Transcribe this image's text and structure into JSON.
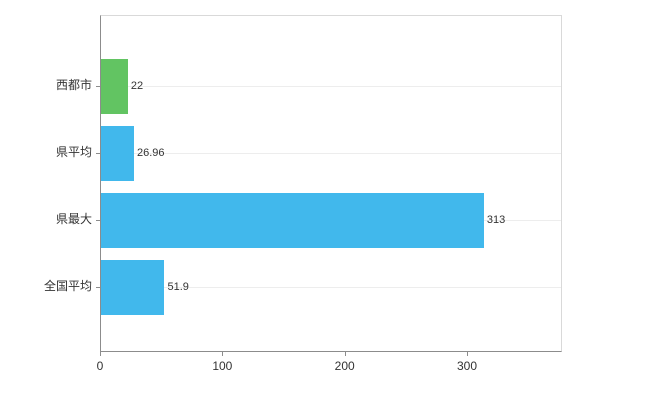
{
  "chart_data": {
    "type": "bar",
    "orientation": "horizontal",
    "title": "",
    "xlabel": "",
    "ylabel": "",
    "categories": [
      "西都市",
      "県平均",
      "県最大",
      "全国平均"
    ],
    "values": [
      22,
      26.96,
      313,
      51.9
    ],
    "value_labels": [
      "22",
      "26.96",
      "313",
      "51.9"
    ],
    "series_colors": [
      "#62c462",
      "#41b8ec",
      "#41b8ec",
      "#41b8ec"
    ],
    "x_ticks": [
      0,
      100,
      200,
      300
    ],
    "x_tick_labels": [
      "0",
      "100",
      "200",
      "300"
    ],
    "xlim": [
      0,
      376
    ],
    "grid": true,
    "legend": false
  },
  "colors": {
    "axis": "#8c8c8c",
    "plot_border": "#d9d9d9",
    "gridline": "#ededed",
    "text": "#333333",
    "background": "#ffffff"
  }
}
